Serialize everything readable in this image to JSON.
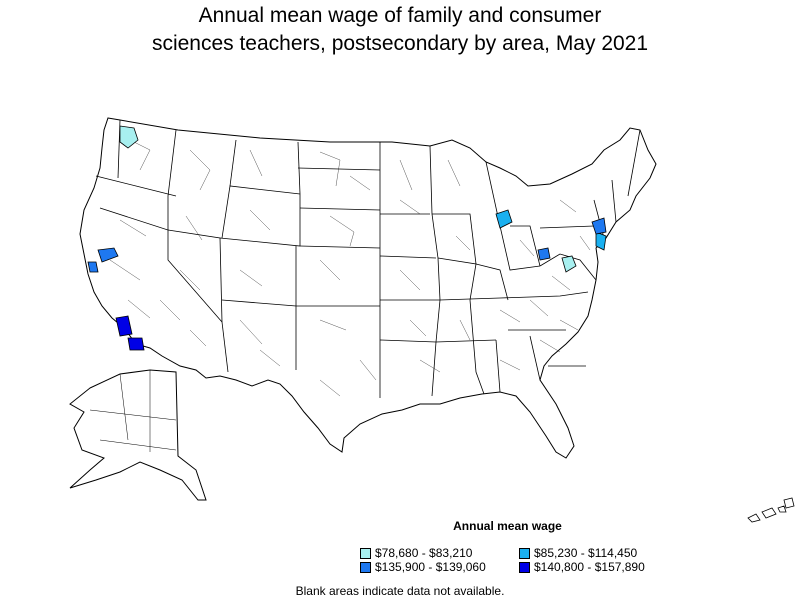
{
  "title_line1": "Annual mean wage of family and consumer",
  "title_line2": "sciences teachers, postsecondary by area, May 2021",
  "legend": {
    "title": "Annual mean wage",
    "items": [
      {
        "label": "$78,680 - $83,210",
        "color": "#a8f0f0"
      },
      {
        "label": "$85,230 - $114,450",
        "color": "#1ab0f0"
      },
      {
        "label": "$135,900 - $139,060",
        "color": "#1e78f0"
      },
      {
        "label": "$140,800 - $157,890",
        "color": "#0000e6"
      }
    ]
  },
  "footnote": "Blank areas indicate data not available.",
  "colors": {
    "tier1": "#a8f0f0",
    "tier2": "#1ab0f0",
    "tier3": "#1e78f0",
    "tier4": "#0000e6",
    "outline": "#000000",
    "background": "#ffffff"
  }
}
